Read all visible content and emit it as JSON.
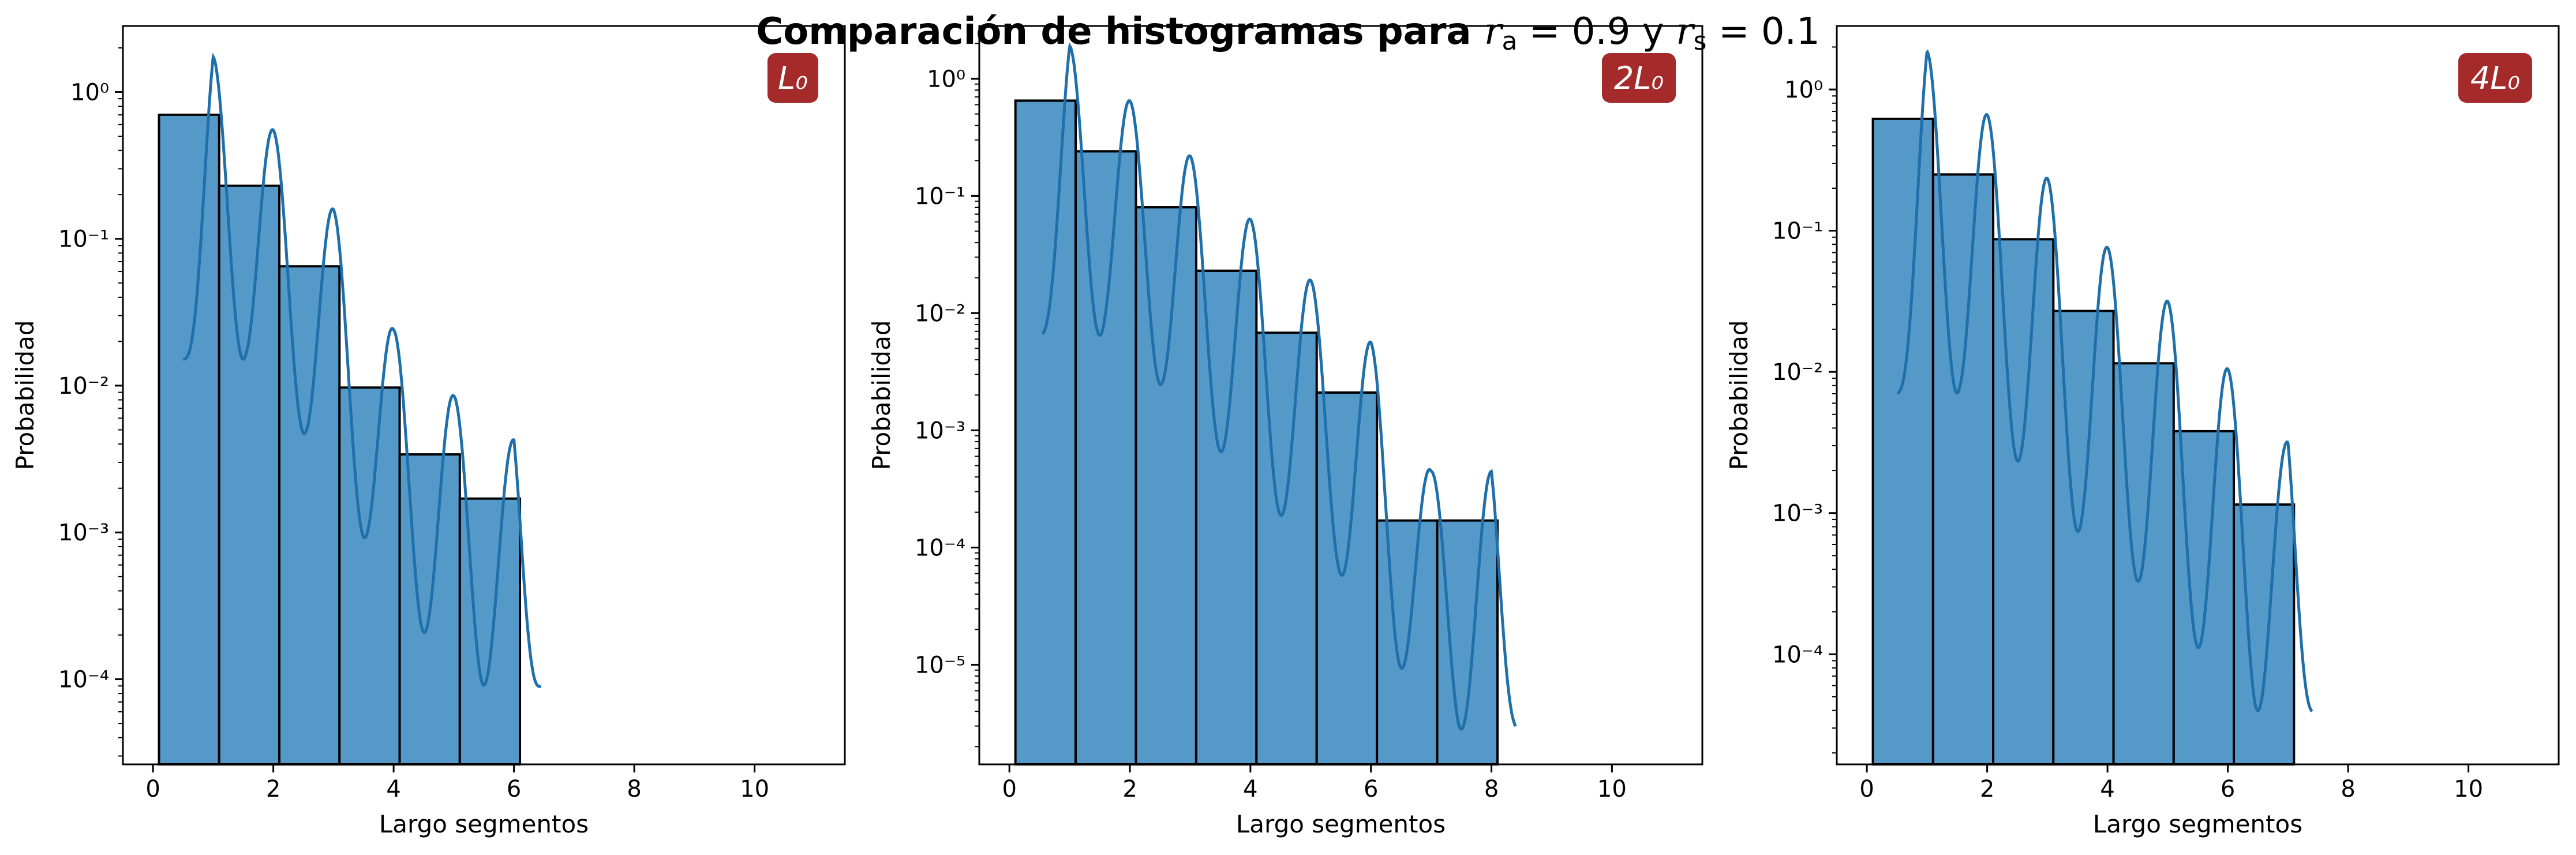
{
  "title_parts": [
    "Comparación de histogramas para ",
    "r",
    "a",
    " = 0.9 y ",
    "r",
    "s",
    " = 0.1"
  ],
  "colors": {
    "bar": "#5599c8",
    "bar_edge": "#000000",
    "curve": "#1f6fab",
    "badge": "#a52a2a",
    "badge_text": "#ffffff"
  },
  "chart_data": [
    {
      "type": "bar",
      "badge": "L₀",
      "xlabel": "Largo segmentos",
      "ylabel": "Probabilidad",
      "xlim": [
        -0.5,
        11.5
      ],
      "xticks": [
        0,
        2,
        4,
        6,
        8,
        10
      ],
      "yscale": "log",
      "ylim_log10": [
        -4.58,
        0.45
      ],
      "yticks": [
        {
          "exp": 0,
          "label": "10⁰"
        },
        {
          "exp": -1,
          "label": "10⁻¹"
        },
        {
          "exp": -2,
          "label": "10⁻²"
        },
        {
          "exp": -3,
          "label": "10⁻³"
        },
        {
          "exp": -4,
          "label": "10⁻⁴"
        }
      ],
      "bin_edges": [
        0.1,
        1.1,
        2.1,
        3.1,
        4.1,
        5.1,
        6.1
      ],
      "values": [
        0.7,
        0.23,
        0.065,
        0.0097,
        0.0034,
        0.0017
      ],
      "kde_range": [
        0.5,
        6.45
      ],
      "kde_log_envelope": [
        [
          0.5,
          -1.72
        ],
        [
          1.0,
          0.24
        ],
        [
          2.0,
          -0.26
        ],
        [
          3.0,
          -0.8
        ],
        [
          4.0,
          -1.62
        ],
        [
          5.0,
          -2.07
        ],
        [
          6.0,
          -2.37
        ],
        [
          6.45,
          -4.32
        ]
      ],
      "kde_dips": [
        [
          1.55,
          -1.82
        ],
        [
          2.55,
          -2.35
        ],
        [
          3.5,
          -3.03
        ],
        [
          4.45,
          -3.66
        ],
        [
          5.45,
          -4.04
        ]
      ]
    },
    {
      "type": "bar",
      "badge": "2L₀",
      "xlabel": "Largo segmentos",
      "ylabel": "Probabilidad",
      "xlim": [
        -0.5,
        11.5
      ],
      "xticks": [
        0,
        2,
        4,
        6,
        8,
        10
      ],
      "yscale": "log",
      "ylim_log10": [
        -5.85,
        0.45
      ],
      "yticks": [
        {
          "exp": 0,
          "label": "10⁰"
        },
        {
          "exp": -1,
          "label": "10⁻¹"
        },
        {
          "exp": -2,
          "label": "10⁻²"
        },
        {
          "exp": -3,
          "label": "10⁻³"
        },
        {
          "exp": -4,
          "label": "10⁻⁴"
        },
        {
          "exp": -5,
          "label": "10⁻⁵"
        }
      ],
      "bin_edges": [
        0.1,
        1.1,
        2.1,
        3.1,
        4.1,
        5.1,
        6.1,
        7.1,
        8.1
      ],
      "values": [
        0.65,
        0.24,
        0.08,
        0.023,
        0.0068,
        0.0021,
        0.00017,
        0.00017
      ],
      "kde_range": [
        0.55,
        8.4
      ],
      "kde_log_envelope": [
        [
          0.55,
          -1.7
        ],
        [
          1.0,
          0.28
        ],
        [
          2.0,
          -0.19
        ],
        [
          3.0,
          -0.66
        ],
        [
          4.0,
          -1.2
        ],
        [
          5.0,
          -1.72
        ],
        [
          6.0,
          -2.25
        ],
        [
          7.0,
          -3.35
        ],
        [
          8.0,
          -3.35
        ],
        [
          8.4,
          -5.28
        ]
      ],
      "kde_dips": [
        [
          1.6,
          -2.19
        ],
        [
          2.55,
          -2.63
        ],
        [
          3.5,
          -3.18
        ],
        [
          4.45,
          -3.7
        ],
        [
          5.45,
          -4.19
        ],
        [
          6.45,
          -5.0
        ],
        [
          7.45,
          -5.55
        ]
      ]
    },
    {
      "type": "bar",
      "badge": "4L₀",
      "xlabel": "Largo segmentos",
      "ylabel": "Probabilidad",
      "xlim": [
        -0.5,
        11.5
      ],
      "xticks": [
        0,
        2,
        4,
        6,
        8,
        10
      ],
      "yscale": "log",
      "ylim_log10": [
        -4.78,
        0.45
      ],
      "yticks": [
        {
          "exp": 0,
          "label": "10⁰"
        },
        {
          "exp": -1,
          "label": "10⁻¹"
        },
        {
          "exp": -2,
          "label": "10⁻²"
        },
        {
          "exp": -3,
          "label": "10⁻³"
        },
        {
          "exp": -4,
          "label": "10⁻⁴"
        }
      ],
      "bin_edges": [
        0.1,
        1.1,
        2.1,
        3.1,
        4.1,
        5.1,
        6.1,
        7.1
      ],
      "values": [
        0.62,
        0.25,
        0.087,
        0.027,
        0.0115,
        0.0038,
        0.00115
      ],
      "kde_range": [
        0.5,
        7.4
      ],
      "kde_log_envelope": [
        [
          0.5,
          -1.72
        ],
        [
          1.0,
          0.27
        ],
        [
          2.0,
          -0.18
        ],
        [
          3.0,
          -0.63
        ],
        [
          4.0,
          -1.12
        ],
        [
          5.0,
          -1.5
        ],
        [
          6.0,
          -1.98
        ],
        [
          7.0,
          -2.5
        ],
        [
          7.4,
          -4.45
        ]
      ],
      "kde_dips": [
        [
          1.55,
          -2.15
        ],
        [
          2.5,
          -2.63
        ],
        [
          3.5,
          -3.13
        ],
        [
          4.5,
          -3.48
        ],
        [
          5.5,
          -3.95
        ],
        [
          6.45,
          -4.4
        ]
      ]
    }
  ]
}
